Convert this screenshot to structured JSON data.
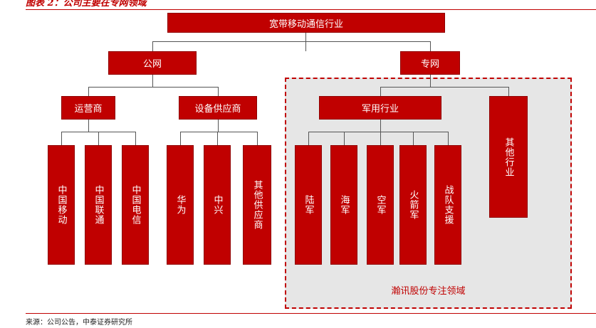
{
  "figure": {
    "title": "图表 2：公司主要在专网领域",
    "source": "来源：公司公告，中泰证券研究所"
  },
  "nodes": {
    "root": "宽带移动通信行业",
    "public_net": "公网",
    "private_net": "专网",
    "operators": "运营商",
    "vendors": "设备供应商",
    "military": "军用行业",
    "other_industry": "其他行业",
    "china_mobile": "中国移动",
    "china_unicom": "中国联通",
    "china_telecom": "中国电信",
    "huawei": "华为",
    "zte": "中兴",
    "other_vendors": "其他供应商",
    "army": "陆军",
    "navy": "海军",
    "air_force": "空军",
    "rocket_force": "火箭军",
    "strategic_support": "战队支援"
  },
  "focus_zone_label": "瀚讯股份专注领域",
  "colors": {
    "box": "#c00000",
    "zone_fill": "#e6e6e6",
    "zone_border": "#c00000",
    "connector": "#555555"
  }
}
